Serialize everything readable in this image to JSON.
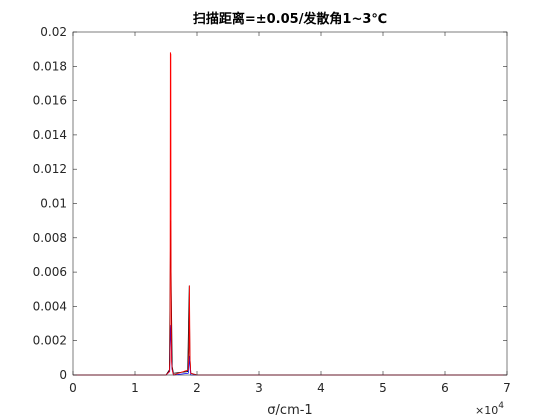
{
  "chart_data": {
    "type": "line",
    "title": "扫描距离=±0.05/发散角1~3℃",
    "xlabel": "σ/cm-1",
    "ylabel": "",
    "x_exponent_label": "×10",
    "x_exponent_power": "4",
    "xlim": [
      0,
      7
    ],
    "ylim": [
      0,
      0.02
    ],
    "x_ticks": [
      0,
      1,
      2,
      3,
      4,
      5,
      6,
      7
    ],
    "x_tick_labels": [
      "0",
      "1",
      "2",
      "3",
      "4",
      "5",
      "6",
      "7"
    ],
    "y_ticks": [
      0,
      0.002,
      0.004,
      0.006,
      0.008,
      0.01,
      0.012,
      0.014,
      0.016,
      0.018,
      0.02
    ],
    "y_tick_labels": [
      "0",
      "0.002",
      "0.004",
      "0.006",
      "0.008",
      "0.01",
      "0.012",
      "0.014",
      "0.016",
      "0.018",
      "0.02"
    ],
    "grid": false,
    "box": true,
    "series": [
      {
        "color": "#000000",
        "x": [
          0,
          1.5,
          1.555,
          1.575,
          1.585,
          1.6,
          1.62,
          1.85,
          1.875,
          1.885,
          1.9,
          2.0,
          7.0
        ],
        "y": [
          0,
          0,
          0.0003,
          0.009,
          0.005,
          0.0005,
          0.0001,
          0.0002,
          0.0052,
          0.0011,
          0.0001,
          0,
          0
        ]
      },
      {
        "color": "#0000ff",
        "x": [
          0,
          1.5,
          1.56,
          1.572,
          1.582,
          1.595,
          1.62,
          1.86,
          1.872,
          1.882,
          1.9,
          2.0,
          7.0
        ],
        "y": [
          0,
          0,
          0.0002,
          0.0029,
          0.002,
          0.0004,
          0,
          0.0001,
          0.0011,
          0.0006,
          0,
          0,
          0
        ]
      },
      {
        "color": "#ff0000",
        "x": [
          0,
          1.5,
          1.555,
          1.565,
          1.57,
          1.578,
          1.582,
          1.59,
          1.6,
          1.62,
          1.86,
          1.872,
          1.878,
          1.888,
          1.9,
          2.0,
          7.0
        ],
        "y": [
          0,
          0,
          0.0002,
          0.0009,
          0.0188,
          0.0187,
          0.005,
          0.0008,
          0.0003,
          0,
          0.0003,
          0.0016,
          0.0052,
          0.0009,
          0.0001,
          0,
          0
        ]
      }
    ]
  }
}
